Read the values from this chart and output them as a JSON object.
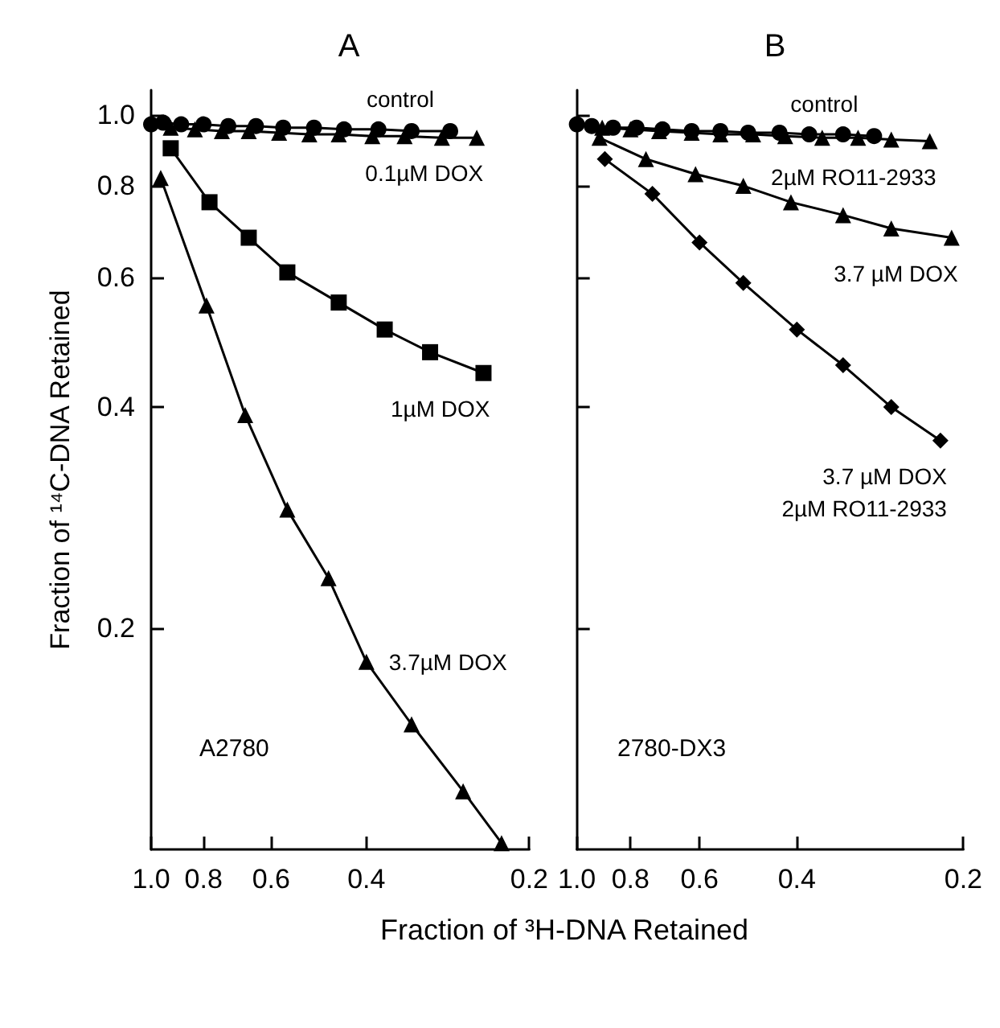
{
  "chart_data": [
    {
      "type": "line",
      "title": "A",
      "ylabel": "Fraction of ¹⁴C-DNA Retained",
      "xlabel": "Fraction of ³H-DNA Retained",
      "log": "xy",
      "grid": false,
      "legend": false,
      "xlim": [
        1.0,
        0.2
      ],
      "xticks": [
        {
          "value": 1.0,
          "label": "1.0"
        },
        0.8,
        0.6,
        0.4,
        0.2
      ],
      "ylim": [
        0.1,
        1.08
      ],
      "yticks": [
        {
          "value": 1.0,
          "label": "1.0"
        },
        0.8,
        0.6,
        0.4,
        0.2
      ],
      "series": [
        {
          "name": "control",
          "color": "#000000",
          "marker": "circle",
          "x": [
            1.0,
            0.95,
            0.88,
            0.8,
            0.72,
            0.64,
            0.57,
            0.5,
            0.44,
            0.38,
            0.33,
            0.28
          ],
          "values": [
            0.97,
            0.975,
            0.97,
            0.97,
            0.965,
            0.965,
            0.96,
            0.96,
            0.955,
            0.955,
            0.95,
            0.95
          ]
        },
        {
          "name": "0.1µM DOX",
          "color": "#000000",
          "marker": "triangle",
          "x": [
            0.92,
            0.83,
            0.74,
            0.66,
            0.58,
            0.51,
            0.45,
            0.39,
            0.34,
            0.29,
            0.25
          ],
          "values": [
            0.96,
            0.955,
            0.95,
            0.95,
            0.945,
            0.94,
            0.94,
            0.935,
            0.935,
            0.93,
            0.93
          ]
        },
        {
          "name": "1µM DOX",
          "color": "#000000",
          "marker": "square",
          "x": [
            0.92,
            0.78,
            0.66,
            0.56,
            0.45,
            0.37,
            0.305,
            0.243
          ],
          "values": [
            0.9,
            0.76,
            0.68,
            0.61,
            0.555,
            0.51,
            0.475,
            0.445
          ]
        },
        {
          "name": "3.7µM DOX",
          "color": "#000000",
          "marker": "triangle",
          "x": [
            0.96,
            0.79,
            0.67,
            0.56,
            0.47,
            0.4,
            0.33,
            0.265,
            0.225
          ],
          "values": [
            0.82,
            0.55,
            0.39,
            0.29,
            0.234,
            0.18,
            0.148,
            0.12,
            0.102
          ]
        }
      ],
      "annotations": [
        "A2780"
      ]
    },
    {
      "type": "line",
      "title": "B",
      "log": "xy",
      "grid": false,
      "legend": false,
      "tick_labels": "x",
      "xlim": [
        1.0,
        0.2
      ],
      "xticks": [
        {
          "value": 1.0,
          "label": "1.0"
        },
        0.8,
        0.6,
        0.4,
        0.2
      ],
      "ylim": [
        0.1,
        1.08
      ],
      "yticks": [
        1.0,
        0.8,
        0.6,
        0.4,
        0.2
      ],
      "series": [
        {
          "name": "control",
          "color": "#000000",
          "marker": "circle",
          "x": [
            1.0,
            0.94,
            0.86,
            0.78,
            0.7,
            0.62,
            0.55,
            0.49,
            0.43,
            0.38,
            0.33,
            0.29
          ],
          "values": [
            0.97,
            0.965,
            0.96,
            0.96,
            0.955,
            0.95,
            0.95,
            0.945,
            0.945,
            0.94,
            0.94,
            0.935
          ]
        },
        {
          "name": "2µM RO11-2933",
          "color": "#000000",
          "marker": "triangle",
          "x": [
            0.9,
            0.8,
            0.71,
            0.62,
            0.55,
            0.48,
            0.42,
            0.36,
            0.31,
            0.27,
            0.23
          ],
          "values": [
            0.96,
            0.955,
            0.95,
            0.945,
            0.94,
            0.94,
            0.935,
            0.93,
            0.93,
            0.925,
            0.92
          ]
        },
        {
          "name": "3.7 µM DOX",
          "color": "#000000",
          "marker": "triangle",
          "x": [
            0.91,
            0.75,
            0.61,
            0.5,
            0.41,
            0.33,
            0.27,
            0.21
          ],
          "values": [
            0.93,
            0.87,
            0.83,
            0.8,
            0.76,
            0.73,
            0.7,
            0.68
          ]
        },
        {
          "name": "3.7 µM DOX\n2µM RO11-2933",
          "color": "#000000",
          "marker": "diamond",
          "x": [
            0.89,
            0.73,
            0.6,
            0.5,
            0.4,
            0.33,
            0.27,
            0.22
          ],
          "values": [
            0.87,
            0.78,
            0.67,
            0.59,
            0.51,
            0.456,
            0.4,
            0.36
          ]
        }
      ],
      "annotations": [
        "2780-DX3"
      ]
    }
  ]
}
